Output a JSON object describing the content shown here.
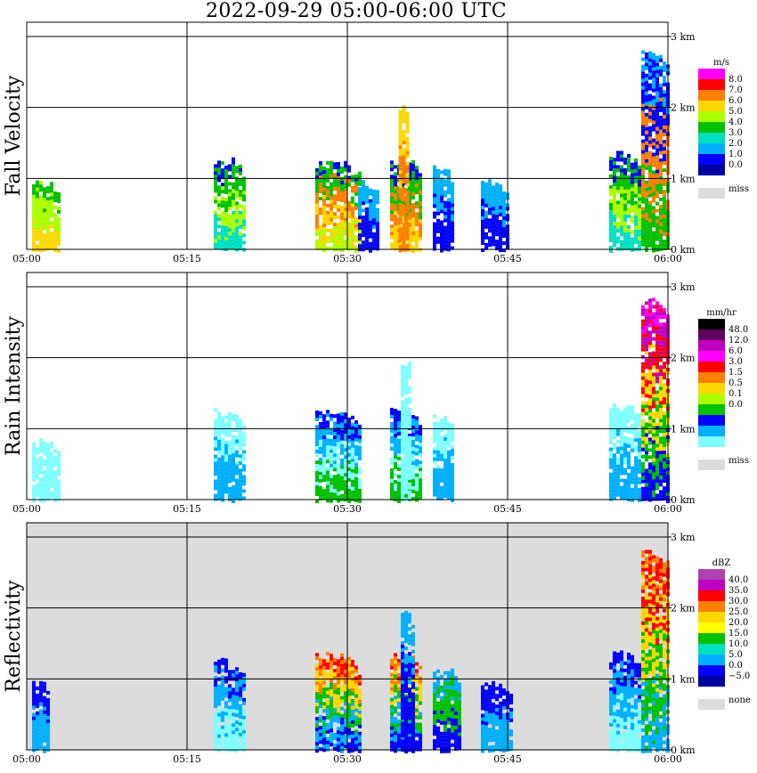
{
  "title": "2022-09-29   05:00-06:00 UTC",
  "chart_data": {
    "type": "heatmap",
    "x_ticks": [
      "05:00",
      "05:15",
      "05:30",
      "05:45",
      "06:00"
    ],
    "y_ticks": [
      "0 km",
      "1 km",
      "2 km",
      "3 km"
    ],
    "panels": [
      {
        "name": "Fall Velocity",
        "ylabel": "Fall Velocity",
        "background": "#ffffff",
        "colorbar": {
          "unit": "m/s",
          "levels": [
            "8.0",
            "7.0",
            "6.0",
            "5.0",
            "4.0",
            "3.0",
            "2.0",
            "1.0",
            "0.0"
          ],
          "colors": [
            "#ff00ff",
            "#ff0000",
            "#ff7f00",
            "#ffd700",
            "#aaff00",
            "#00c000",
            "#00e0c0",
            "#00b0ff",
            "#0000ff",
            "#0000a0"
          ],
          "miss_label": "miss"
        },
        "echoes": [
          {
            "t0": 0.5,
            "t1": 3.0,
            "h": 1.0,
            "colors": [
              "#00c000",
              "#aaff00",
              "#ffd700"
            ]
          },
          {
            "t0": 17.5,
            "t1": 20.5,
            "h": 1.3,
            "colors": [
              "#0000ff",
              "#00c000",
              "#aaff00",
              "#00e0c0"
            ]
          },
          {
            "t0": 27.0,
            "t1": 31.0,
            "h": 1.3,
            "colors": [
              "#0000ff",
              "#00c000",
              "#ff7f00",
              "#ffd700",
              "#aaff00"
            ]
          },
          {
            "t0": 31.0,
            "t1": 33.0,
            "h": 1.0,
            "colors": [
              "#00b0ff",
              "#0000ff"
            ]
          },
          {
            "t0": 34.0,
            "t1": 37.0,
            "h": 1.3,
            "colors": [
              "#0000ff",
              "#00c000",
              "#ff7f00",
              "#ffd700"
            ]
          },
          {
            "t0": 34.8,
            "t1": 35.8,
            "h": 2.05,
            "colors": [
              "#ffd700",
              "#ff7f00"
            ]
          },
          {
            "t0": 38.0,
            "t1": 40.0,
            "h": 1.2,
            "colors": [
              "#00b0ff",
              "#0000ff"
            ]
          },
          {
            "t0": 42.5,
            "t1": 45.0,
            "h": 1.0,
            "colors": [
              "#00b0ff",
              "#0000ff"
            ]
          },
          {
            "t0": 54.5,
            "t1": 57.5,
            "h": 1.4,
            "colors": [
              "#0000ff",
              "#00c000",
              "#aaff00",
              "#00e0c0"
            ]
          },
          {
            "t0": 57.5,
            "t1": 60.0,
            "h": 2.85,
            "colors": [
              "#00b0ff",
              "#0000ff",
              "#ff7f00",
              "#00c000"
            ]
          }
        ]
      },
      {
        "name": "Rain Intensity",
        "ylabel": "Rain Intensity",
        "background": "#ffffff",
        "colorbar": {
          "unit": "mm/hr",
          "levels": [
            "48.0",
            "12.0",
            "6.0",
            "3.0",
            "1.5",
            "0.5",
            "0.1",
            "0.0"
          ],
          "colors": [
            "#000000",
            "#600060",
            "#c000c0",
            "#ff00ff",
            "#ff0000",
            "#ff7f00",
            "#ffd700",
            "#aaff00",
            "#00c000",
            "#0000ff",
            "#00b0ff",
            "#80ffff"
          ],
          "miss_label": "miss"
        },
        "echoes": [
          {
            "t0": 0.5,
            "t1": 3.0,
            "h": 0.9,
            "colors": [
              "#80ffff"
            ]
          },
          {
            "t0": 17.5,
            "t1": 20.5,
            "h": 1.3,
            "colors": [
              "#80ffff",
              "#00b0ff"
            ]
          },
          {
            "t0": 27.0,
            "t1": 31.0,
            "h": 1.3,
            "colors": [
              "#0000ff",
              "#00b0ff",
              "#80ffff",
              "#00c000"
            ]
          },
          {
            "t0": 34.0,
            "t1": 37.0,
            "h": 1.3,
            "colors": [
              "#0000ff",
              "#00b0ff",
              "#80ffff",
              "#00c000"
            ]
          },
          {
            "t0": 35.0,
            "t1": 36.0,
            "h": 2.0,
            "colors": [
              "#80ffff"
            ]
          },
          {
            "t0": 38.0,
            "t1": 40.0,
            "h": 1.2,
            "colors": [
              "#80ffff",
              "#00b0ff"
            ]
          },
          {
            "t0": 54.5,
            "t1": 57.5,
            "h": 1.4,
            "colors": [
              "#80ffff",
              "#00b0ff"
            ]
          },
          {
            "t0": 57.5,
            "t1": 60.0,
            "h": 2.85,
            "colors": [
              "#ff00ff",
              "#c000c0",
              "#ff0000",
              "#ffd700",
              "#00c000",
              "#0000ff"
            ]
          }
        ]
      },
      {
        "name": "Reflectivity",
        "ylabel": "Reflectivity",
        "background": "#dcdcdc",
        "colorbar": {
          "unit": "dBZ",
          "levels": [
            "40.0",
            "35.0",
            "30.0",
            "25.0",
            "20.0",
            "15.0",
            "10.0",
            "5.0",
            "0.0",
            "−5.0"
          ],
          "colors": [
            "#b040b0",
            "#c000c0",
            "#ff0000",
            "#ff7f00",
            "#ffd700",
            "#ffff00",
            "#00c000",
            "#00e0c0",
            "#00b0ff",
            "#0000ff",
            "#0000a0"
          ],
          "miss_label": "none"
        },
        "echoes": [
          {
            "t0": 0.5,
            "t1": 2.0,
            "h": 1.0,
            "colors": [
              "#0000ff",
              "#00b0ff"
            ]
          },
          {
            "t0": 17.5,
            "t1": 20.5,
            "h": 1.3,
            "colors": [
              "#0000ff",
              "#00b0ff",
              "#80ffff"
            ]
          },
          {
            "t0": 27.0,
            "t1": 31.0,
            "h": 1.4,
            "colors": [
              "#ff0000",
              "#ff7f00",
              "#ffd700",
              "#00c000",
              "#00b0ff",
              "#0000ff"
            ]
          },
          {
            "t0": 34.0,
            "t1": 37.0,
            "h": 1.4,
            "colors": [
              "#ff0000",
              "#ff7f00",
              "#ffd700",
              "#00c000",
              "#00b0ff",
              "#0000ff"
            ]
          },
          {
            "t0": 35.0,
            "t1": 36.2,
            "h": 2.0,
            "colors": [
              "#00b0ff",
              "#0000ff"
            ]
          },
          {
            "t0": 38.0,
            "t1": 40.5,
            "h": 1.2,
            "colors": [
              "#00b0ff",
              "#00c000",
              "#0000ff"
            ]
          },
          {
            "t0": 42.5,
            "t1": 45.5,
            "h": 1.0,
            "colors": [
              "#0000ff",
              "#00b0ff"
            ]
          },
          {
            "t0": 54.5,
            "t1": 57.5,
            "h": 1.4,
            "colors": [
              "#0000ff",
              "#00b0ff",
              "#80ffff"
            ]
          },
          {
            "t0": 57.5,
            "t1": 60.0,
            "h": 2.85,
            "colors": [
              "#ff7f00",
              "#ff0000",
              "#ffd700",
              "#00c000",
              "#00b0ff"
            ]
          }
        ]
      }
    ]
  }
}
